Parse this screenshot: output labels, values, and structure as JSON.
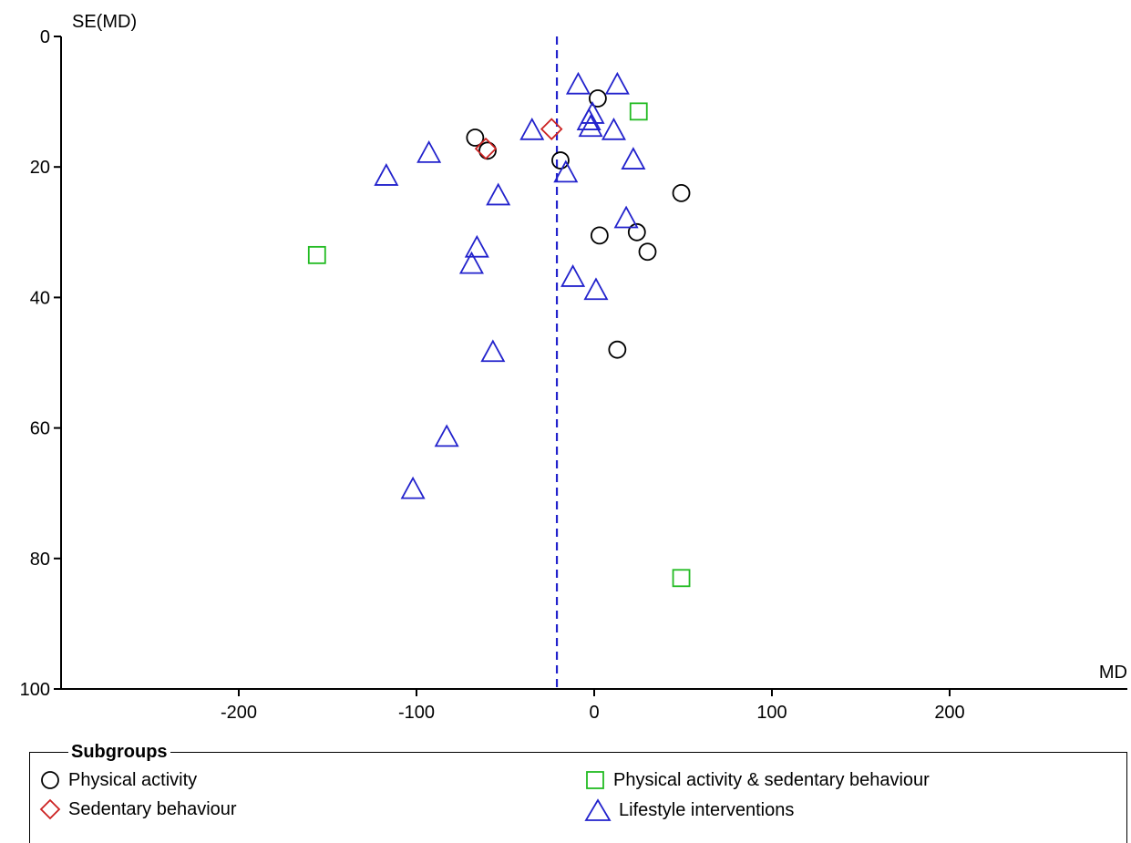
{
  "chart_data": {
    "type": "scatter",
    "title": "",
    "xlabel": "MD",
    "ylabel": "SE(MD)",
    "xlim": [
      -300,
      300
    ],
    "ylim": [
      0,
      100
    ],
    "y_inverted": true,
    "xticks": [
      -200,
      -100,
      0,
      100,
      200
    ],
    "yticks": [
      0,
      20,
      40,
      60,
      80,
      100
    ],
    "reference_line": {
      "x": -21,
      "style": "dashed",
      "color": "#2222cc"
    },
    "grid": false,
    "legend_title": "Subgroups",
    "legend_position": "bottom",
    "series": [
      {
        "name": "Physical activity",
        "marker": "circle",
        "color": "#000000",
        "points": [
          {
            "x": 2,
            "y": 9.5
          },
          {
            "x": -67,
            "y": 15.5
          },
          {
            "x": -60,
            "y": 17.5
          },
          {
            "x": -19,
            "y": 19.0
          },
          {
            "x": 49,
            "y": 24.0
          },
          {
            "x": 3,
            "y": 30.5
          },
          {
            "x": 24,
            "y": 30.0
          },
          {
            "x": 30,
            "y": 33.0
          },
          {
            "x": 13,
            "y": 48.0
          }
        ]
      },
      {
        "name": "Sedentary behaviour",
        "marker": "diamond",
        "color": "#cc2222",
        "points": [
          {
            "x": -24,
            "y": 14.2
          },
          {
            "x": -61,
            "y": 17.2
          }
        ]
      },
      {
        "name": "Physical activity & sedentary behaviour",
        "marker": "square",
        "color": "#22bb22",
        "points": [
          {
            "x": 25,
            "y": 11.5
          },
          {
            "x": -156,
            "y": 33.5
          },
          {
            "x": 49,
            "y": 83.0
          }
        ]
      },
      {
        "name": "Lifestyle interventions",
        "marker": "triangle",
        "color": "#2222cc",
        "points": [
          {
            "x": -9,
            "y": 7.5
          },
          {
            "x": 13,
            "y": 7.5
          },
          {
            "x": -1,
            "y": 12.0
          },
          {
            "x": -3,
            "y": 13.0
          },
          {
            "x": -2,
            "y": 14.0
          },
          {
            "x": -35,
            "y": 14.5
          },
          {
            "x": 11,
            "y": 14.5
          },
          {
            "x": -93,
            "y": 18.0
          },
          {
            "x": 22,
            "y": 19.0
          },
          {
            "x": -117,
            "y": 21.5
          },
          {
            "x": -16,
            "y": 21.0
          },
          {
            "x": -54,
            "y": 24.5
          },
          {
            "x": 18,
            "y": 28.0
          },
          {
            "x": -66,
            "y": 32.5
          },
          {
            "x": -69,
            "y": 35.0
          },
          {
            "x": -12,
            "y": 37.0
          },
          {
            "x": 1,
            "y": 39.0
          },
          {
            "x": -57,
            "y": 48.5
          },
          {
            "x": -83,
            "y": 61.5
          },
          {
            "x": -102,
            "y": 69.5
          }
        ]
      }
    ]
  }
}
